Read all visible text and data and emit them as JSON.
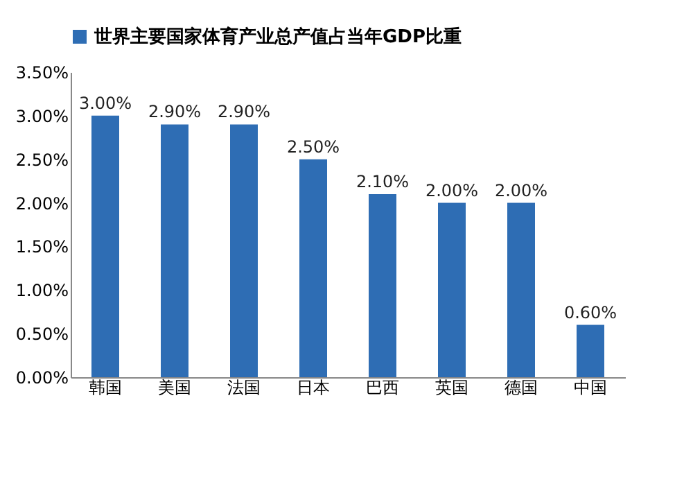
{
  "chart_data": {
    "type": "bar",
    "categories": [
      "韩国",
      "美国",
      "法国",
      "日本",
      "巴西",
      "英国",
      "德国",
      "中国"
    ],
    "series": [
      {
        "name": "世界主要国家体育产业总产值占当年GDP比重",
        "color": "#2e6db4",
        "values": [
          3.0,
          2.9,
          2.9,
          2.5,
          2.1,
          2.0,
          2.0,
          0.6
        ],
        "value_labels": [
          "3.00%",
          "2.90%",
          "2.90%",
          "2.50%",
          "2.10%",
          "2.00%",
          "2.00%",
          "0.60%"
        ]
      }
    ],
    "ylim": [
      0,
      3.5
    ],
    "yticks": [
      {
        "value": 0,
        "label": "0.00%"
      },
      {
        "value": 0.5,
        "label": "0.50%"
      },
      {
        "value": 1,
        "label": "1.00%"
      },
      {
        "value": 1.5,
        "label": "1.50%"
      },
      {
        "value": 2,
        "label": "2.00%"
      },
      {
        "value": 2.5,
        "label": "2.50%"
      },
      {
        "value": 3,
        "label": "3.00%"
      },
      {
        "value": 3.5,
        "label": "3.50%"
      }
    ],
    "grid": false,
    "legend": "top"
  }
}
